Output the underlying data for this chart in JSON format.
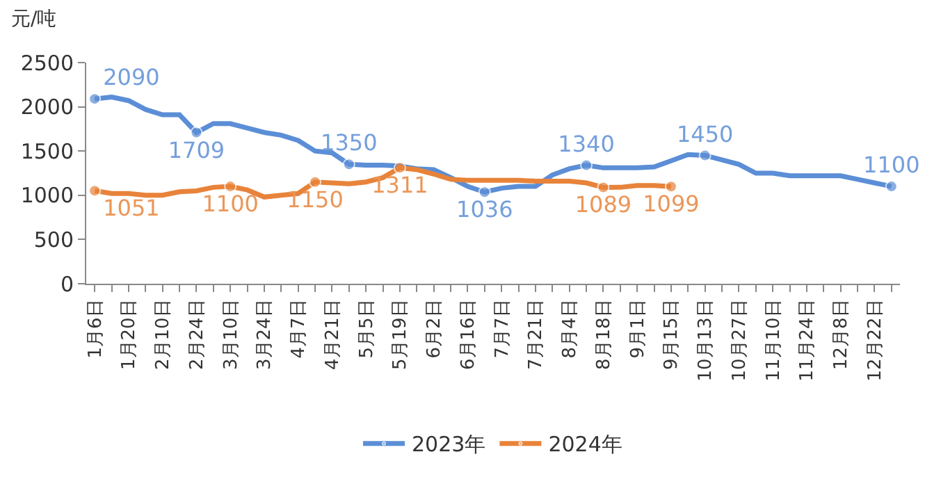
{
  "chart_data": {
    "type": "line",
    "ylabel": "元/吨",
    "categories": [
      "1月6日",
      null,
      "1月20日",
      null,
      "2月10日",
      null,
      "2月24日",
      null,
      "3月10日",
      null,
      "3月24日",
      null,
      "4月7日",
      null,
      "4月21日",
      null,
      "5月5日",
      null,
      "5月19日",
      null,
      "6月2日",
      null,
      "6月16日",
      null,
      "7月7日",
      null,
      "7月21日",
      null,
      "8月4日",
      null,
      "8月18日",
      null,
      "9月1日",
      null,
      "9月15日",
      null,
      "10月13日",
      null,
      "10月27日",
      null,
      "11月10日",
      null,
      "11月24日",
      null,
      "12月8日",
      null,
      "12月22日",
      null
    ],
    "series": [
      {
        "name": "2023年",
        "color": "#5b8ed6",
        "values": [
          2090,
          2110,
          2070,
          1970,
          1910,
          1910,
          1709,
          1810,
          1810,
          1760,
          1710,
          1680,
          1620,
          1500,
          1480,
          1350,
          1340,
          1340,
          1330,
          1300,
          1290,
          1200,
          1100,
          1036,
          1080,
          1100,
          1100,
          1230,
          1300,
          1340,
          1310,
          1310,
          1310,
          1320,
          1390,
          1460,
          1450,
          1400,
          1350,
          1250,
          1250,
          1220,
          1220,
          1220,
          1220,
          1180,
          1140,
          1100
        ],
        "value_labels": [
          "2090",
          null,
          null,
          null,
          null,
          null,
          "1709",
          null,
          null,
          null,
          null,
          null,
          null,
          null,
          null,
          "1350",
          null,
          null,
          null,
          null,
          null,
          null,
          null,
          "1036",
          null,
          null,
          null,
          null,
          null,
          "1340",
          null,
          null,
          null,
          null,
          null,
          null,
          "1450",
          null,
          null,
          null,
          null,
          null,
          null,
          null,
          null,
          null,
          null,
          "1100"
        ]
      },
      {
        "name": "2024年",
        "color": "#e8833a",
        "values": [
          1051,
          1020,
          1020,
          1000,
          1000,
          1040,
          1050,
          1090,
          1100,
          1060,
          980,
          1000,
          1020,
          1150,
          1140,
          1130,
          1150,
          1200,
          1311,
          1290,
          1240,
          1180,
          1170,
          1170,
          1170,
          1170,
          1160,
          1160,
          1160,
          1140,
          1089,
          1090,
          1110,
          1110,
          1099,
          null,
          null,
          null,
          null,
          null,
          null,
          null,
          null,
          null,
          null,
          null,
          null,
          null
        ],
        "value_labels": [
          "1051",
          null,
          null,
          null,
          null,
          null,
          null,
          null,
          "1100",
          null,
          null,
          null,
          null,
          "1150",
          null,
          null,
          null,
          null,
          "1311",
          null,
          null,
          null,
          null,
          null,
          null,
          null,
          null,
          null,
          null,
          null,
          "1089",
          null,
          null,
          null,
          "1099",
          null,
          null,
          null,
          null,
          null,
          null,
          null,
          null,
          null,
          null,
          null,
          null,
          null
        ]
      }
    ],
    "ylim": [
      0,
      2500
    ],
    "yticks": [
      0,
      500,
      1000,
      1500,
      2000,
      2500
    ],
    "legend": "bottom",
    "line_style": "solid"
  }
}
